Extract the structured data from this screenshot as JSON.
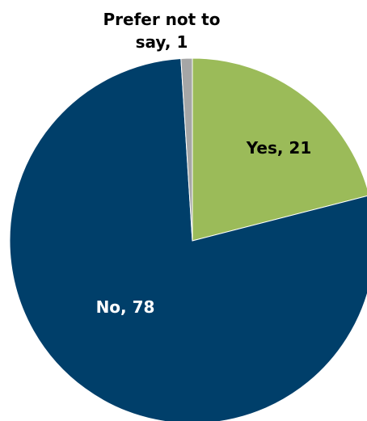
{
  "chart_data": {
    "type": "pie",
    "slices": [
      {
        "label": "Yes",
        "value": 21,
        "color": "#9BBB59"
      },
      {
        "label": "No",
        "value": 78,
        "color": "#003F6A"
      },
      {
        "label": "Prefer not to say",
        "value": 1,
        "color": "#A6A6A6"
      }
    ],
    "data_labels": [
      {
        "lines": [
          "Yes, 21"
        ],
        "color": "#000000"
      },
      {
        "lines": [
          "No, 78"
        ],
        "color": "#FFFFFF"
      },
      {
        "lines": [
          "Prefer not to",
          "say, 1"
        ],
        "color": "#000000"
      }
    ]
  }
}
